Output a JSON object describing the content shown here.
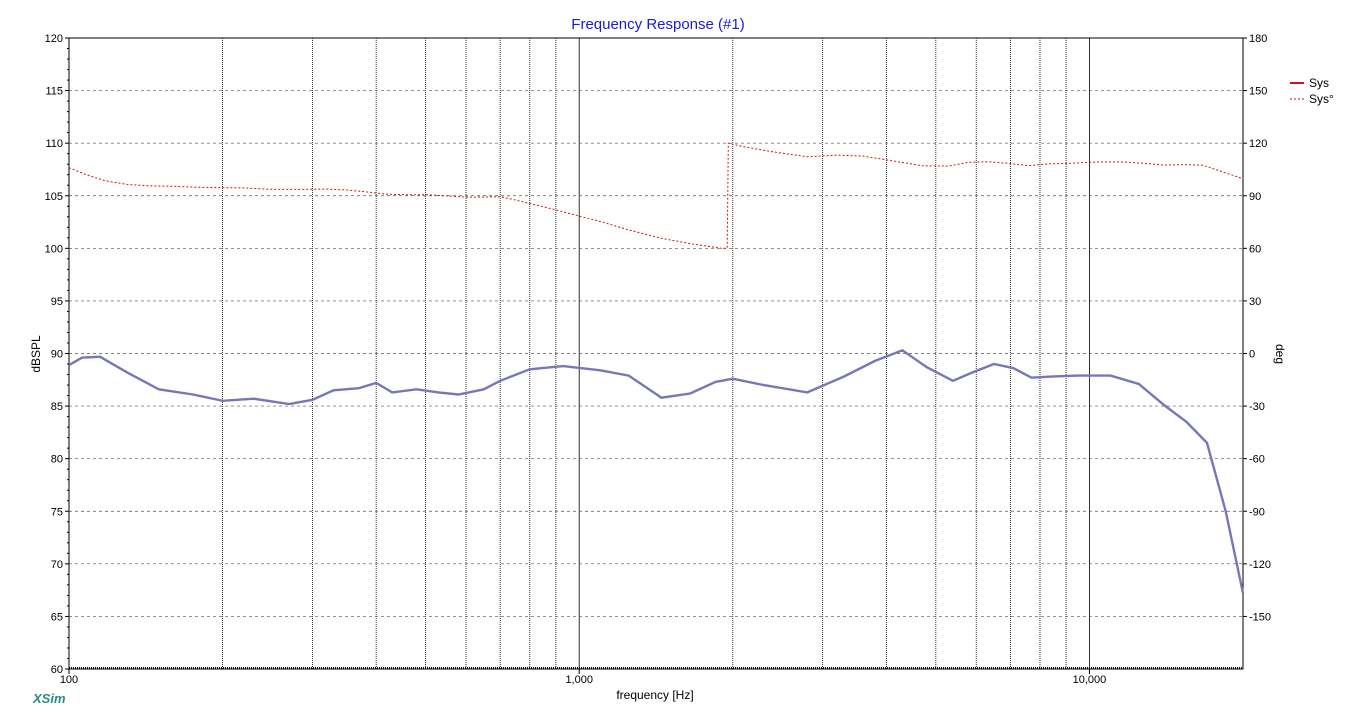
{
  "brand": "XSim",
  "colors": {
    "spl": "#7777b8",
    "phase": "#d41414",
    "grid": "#000000",
    "title": "#1a1ad6",
    "brand": "#2a8a8a"
  },
  "chart_data": {
    "type": "line",
    "title": "Frequency Response (#1)",
    "xlabel": "frequency [Hz]",
    "ylabel_left": "dBSPL",
    "ylabel_right": "deg",
    "x_scale": "log",
    "xlim": [
      100,
      20000
    ],
    "ylim_left": [
      60,
      120
    ],
    "ylim_right": [
      -180,
      180
    ],
    "x_ticks": [
      100,
      1000,
      10000
    ],
    "x_tick_labels": [
      "100",
      "1,000",
      "10,000"
    ],
    "y_ticks_left": [
      60,
      65,
      70,
      75,
      80,
      85,
      90,
      95,
      100,
      105,
      110,
      115,
      120
    ],
    "y_tick_labels_left": [
      "60",
      "65",
      "70",
      "75",
      "80",
      "85",
      "90",
      "95",
      "100",
      "105",
      "110",
      "115",
      "120"
    ],
    "y_ticks_right": [
      -150,
      -120,
      -90,
      -60,
      -30,
      0,
      30,
      60,
      90,
      120,
      150,
      180
    ],
    "y_tick_labels_right": [
      "-150",
      "-120",
      "-90",
      "-60",
      "-30",
      "0",
      "30",
      "60",
      "90",
      "120",
      "150",
      "180"
    ],
    "grid": true,
    "legend_position": "top-right",
    "legend": [
      {
        "name": "Sys",
        "style": "solid"
      },
      {
        "name": "Sys°",
        "style": "dashed"
      }
    ],
    "series": [
      {
        "name": "Sys",
        "axis": "left",
        "style": "solid",
        "x": [
          100,
          106,
          115,
          130,
          150,
          175,
          200,
          230,
          270,
          300,
          330,
          370,
          400,
          430,
          480,
          530,
          580,
          650,
          700,
          800,
          930,
          1100,
          1250,
          1450,
          1650,
          1850,
          2000,
          2300,
          2800,
          3300,
          3800,
          4300,
          4800,
          5400,
          5900,
          6500,
          7100,
          7700,
          8400,
          9500,
          11000,
          12500,
          14000,
          15500,
          17000,
          18500,
          20000
        ],
        "y": [
          88.9,
          89.6,
          89.7,
          88.2,
          86.6,
          86.1,
          85.5,
          85.7,
          85.2,
          85.6,
          86.5,
          86.7,
          87.2,
          86.3,
          86.6,
          86.3,
          86.1,
          86.6,
          87.4,
          88.5,
          88.8,
          88.4,
          87.9,
          85.8,
          86.2,
          87.3,
          87.6,
          87.0,
          86.3,
          87.8,
          89.3,
          90.3,
          88.7,
          87.4,
          88.2,
          89.0,
          88.6,
          87.7,
          87.8,
          87.9,
          87.9,
          87.1,
          85.1,
          83.5,
          81.5,
          75.0,
          67.2
        ]
      },
      {
        "name": "Sys°",
        "axis": "right",
        "style": "dashed",
        "x": [
          100,
          108,
          118,
          130,
          145,
          160,
          180,
          200,
          220,
          250,
          280,
          320,
          350,
          380,
          420,
          460,
          500,
          550,
          600,
          650,
          700,
          740,
          780,
          830,
          900,
          1000,
          1100,
          1250,
          1450,
          1650,
          1900,
          1950,
          1960,
          2100,
          2400,
          2800,
          3200,
          3600,
          4100,
          4700,
          5300,
          5800,
          6300,
          6900,
          7600,
          8400,
          9200,
          10200,
          11500,
          12800,
          14000,
          15300,
          16700,
          18000,
          20000
        ],
        "y": [
          106,
          102,
          98.5,
          96.5,
          95.6,
          95.4,
          94.8,
          94.6,
          94.5,
          93.6,
          93.6,
          93.8,
          93.3,
          92.3,
          90.9,
          90.6,
          90.6,
          89.9,
          89.2,
          89.3,
          89.4,
          88.0,
          86.4,
          84.5,
          81.9,
          78.4,
          75.3,
          70.5,
          65.7,
          62.7,
          60.0,
          60.0,
          120.0,
          118,
          115,
          112.2,
          113.2,
          112.6,
          110,
          107.1,
          106.9,
          109.1,
          109.4,
          108.5,
          107.2,
          108.2,
          108.5,
          109.2,
          109.3,
          108.5,
          107.5,
          107.8,
          107.4,
          104.2,
          99.7
        ]
      }
    ],
    "phase_series_note": ""
  }
}
